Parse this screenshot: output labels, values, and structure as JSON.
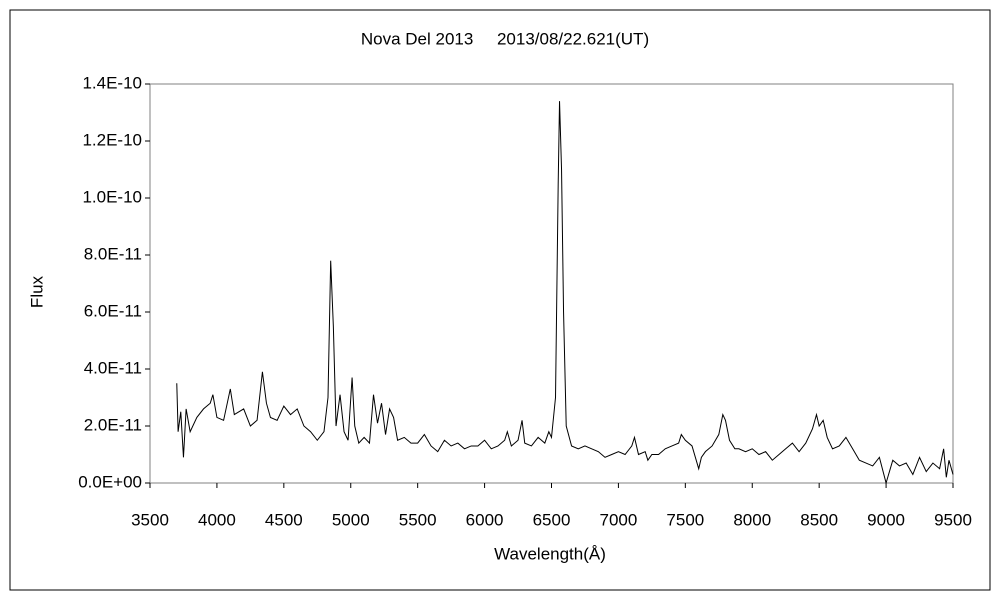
{
  "chart_data": {
    "type": "line",
    "title": "Nova Del 2013     2013/08/22.621(UT)",
    "x_label": "Wavelength(Å)",
    "y_label": "Flux",
    "xlim": [
      3500,
      9500
    ],
    "xticks": [
      3500,
      4000,
      4500,
      5000,
      5500,
      6000,
      6500,
      7000,
      7500,
      8000,
      8500,
      9000,
      9500
    ],
    "ylim": [
      0,
      1.4e-10
    ],
    "yticks": [
      {
        "value": 0,
        "label": "0.0E+00"
      },
      {
        "value": 2e-11,
        "label": "2.0E-11"
      },
      {
        "value": 4e-11,
        "label": "4.0E-11"
      },
      {
        "value": 6e-11,
        "label": "6.0E-11"
      },
      {
        "value": 8e-11,
        "label": "8.0E-11"
      },
      {
        "value": 1e-10,
        "label": "1.0E-10"
      },
      {
        "value": 1.2e-10,
        "label": "1.2E-10"
      },
      {
        "value": 1.4e-10,
        "label": "1.4E-10"
      }
    ],
    "grid": false,
    "color": "#000000",
    "x": [
      3700,
      3710,
      3730,
      3750,
      3770,
      3800,
      3850,
      3900,
      3950,
      3970,
      4000,
      4050,
      4100,
      4130,
      4200,
      4250,
      4300,
      4340,
      4370,
      4400,
      4450,
      4500,
      4550,
      4600,
      4650,
      4700,
      4750,
      4800,
      4830,
      4850,
      4870,
      4890,
      4920,
      4950,
      4980,
      5010,
      5030,
      5060,
      5100,
      5140,
      5170,
      5200,
      5230,
      5260,
      5290,
      5320,
      5350,
      5400,
      5450,
      5500,
      5550,
      5600,
      5650,
      5700,
      5750,
      5800,
      5850,
      5900,
      5950,
      6000,
      6050,
      6100,
      6150,
      6170,
      6200,
      6250,
      6280,
      6300,
      6350,
      6400,
      6450,
      6480,
      6500,
      6530,
      6550,
      6560,
      6575,
      6590,
      6610,
      6650,
      6700,
      6750,
      6800,
      6850,
      6900,
      6950,
      7000,
      7050,
      7100,
      7120,
      7150,
      7200,
      7220,
      7250,
      7300,
      7350,
      7400,
      7450,
      7470,
      7500,
      7550,
      7600,
      7620,
      7650,
      7700,
      7750,
      7780,
      7800,
      7830,
      7870,
      7900,
      7950,
      8000,
      8050,
      8100,
      8150,
      8200,
      8250,
      8300,
      8350,
      8400,
      8450,
      8480,
      8500,
      8530,
      8560,
      8600,
      8650,
      8700,
      8750,
      8800,
      8850,
      8900,
      8950,
      9000,
      9050,
      9100,
      9150,
      9200,
      9250,
      9300,
      9350,
      9400,
      9430,
      9450,
      9470,
      9500
    ],
    "values": [
      3.5e-11,
      1.8e-11,
      2.5e-11,
      9e-12,
      2.6e-11,
      1.8e-11,
      2.3e-11,
      2.6e-11,
      2.8e-11,
      3.1e-11,
      2.3e-11,
      2.2e-11,
      3.3e-11,
      2.4e-11,
      2.6e-11,
      2e-11,
      2.2e-11,
      3.9e-11,
      2.8e-11,
      2.3e-11,
      2.2e-11,
      2.7e-11,
      2.4e-11,
      2.6e-11,
      2e-11,
      1.8e-11,
      1.5e-11,
      1.8e-11,
      3e-11,
      7.8e-11,
      5.5e-11,
      2e-11,
      3.1e-11,
      1.8e-11,
      1.5e-11,
      3.7e-11,
      2e-11,
      1.4e-11,
      1.6e-11,
      1.4e-11,
      3.1e-11,
      2.1e-11,
      2.8e-11,
      1.7e-11,
      2.6e-11,
      2.3e-11,
      1.5e-11,
      1.6e-11,
      1.4e-11,
      1.4e-11,
      1.7e-11,
      1.3e-11,
      1.1e-11,
      1.5e-11,
      1.3e-11,
      1.4e-11,
      1.2e-11,
      1.3e-11,
      1.3e-11,
      1.5e-11,
      1.2e-11,
      1.3e-11,
      1.5e-11,
      1.8e-11,
      1.3e-11,
      1.5e-11,
      2.2e-11,
      1.4e-11,
      1.3e-11,
      1.6e-11,
      1.4e-11,
      1.8e-11,
      1.6e-11,
      3e-11,
      1.05e-10,
      1.34e-10,
      1.1e-10,
      6e-11,
      2e-11,
      1.3e-11,
      1.2e-11,
      1.3e-11,
      1.2e-11,
      1.1e-11,
      9e-12,
      1e-11,
      1.1e-11,
      1e-11,
      1.3e-11,
      1.6e-11,
      1e-11,
      1.1e-11,
      8e-12,
      1e-11,
      1e-11,
      1.2e-11,
      1.3e-11,
      1.4e-11,
      1.7e-11,
      1.5e-11,
      1.3e-11,
      5e-12,
      9e-12,
      1.1e-11,
      1.3e-11,
      1.7e-11,
      2.4e-11,
      2.2e-11,
      1.5e-11,
      1.2e-11,
      1.2e-11,
      1.1e-11,
      1.2e-11,
      1e-11,
      1.1e-11,
      8e-12,
      1e-11,
      1.2e-11,
      1.4e-11,
      1.1e-11,
      1.4e-11,
      1.9e-11,
      2.4e-11,
      2e-11,
      2.2e-11,
      1.6e-11,
      1.2e-11,
      1.3e-11,
      1.6e-11,
      1.2e-11,
      8e-12,
      7e-12,
      6e-12,
      9e-12,
      0,
      8e-12,
      6e-12,
      7e-12,
      3e-12,
      9e-12,
      4e-12,
      7e-12,
      5e-12,
      1.2e-11,
      2e-12,
      8e-12,
      3e-12
    ]
  }
}
